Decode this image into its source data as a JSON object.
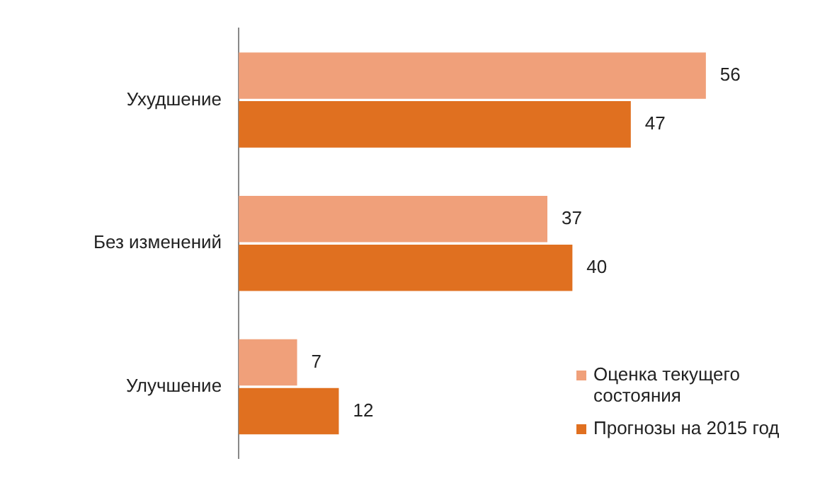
{
  "chart_data": {
    "type": "bar",
    "orientation": "horizontal",
    "categories": [
      "Ухудшение",
      "Без изменений",
      "Улучшение"
    ],
    "series": [
      {
        "name": "Оценка текущего состояния",
        "color": "#f0a07a",
        "values": [
          56,
          37,
          7
        ]
      },
      {
        "name": "Прогнозы на 2015 год",
        "color": "#e07020",
        "values": [
          47,
          40,
          12
        ]
      }
    ],
    "data_labels": true,
    "legend": "bottom right"
  }
}
